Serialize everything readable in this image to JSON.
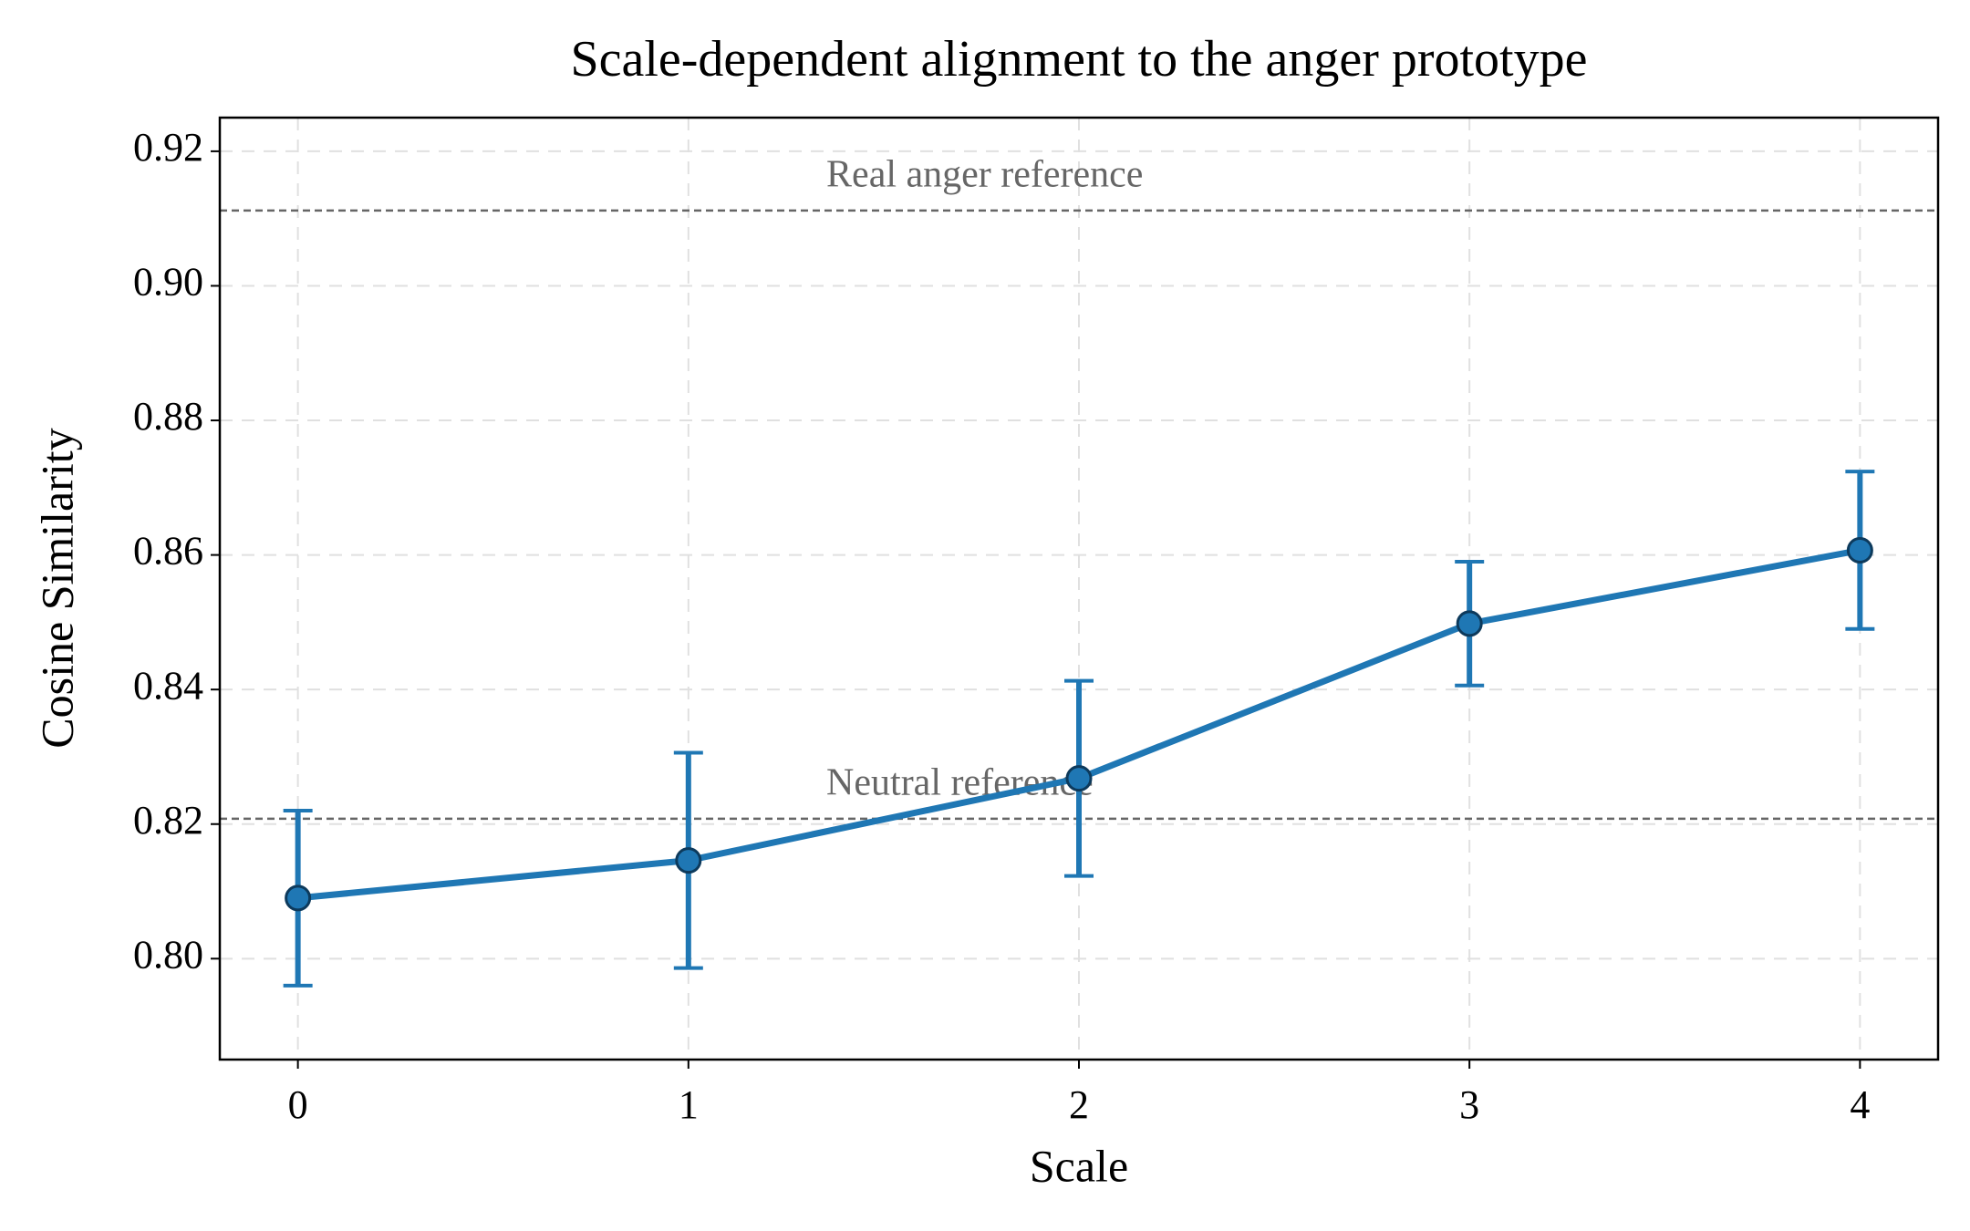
{
  "chart_data": {
    "type": "line",
    "title": "Scale-dependent alignment to the anger prototype",
    "x_label": "Scale",
    "y_label": "Cosine Similarity",
    "x": [
      0,
      1,
      2,
      3,
      4
    ],
    "series": [
      {
        "color": "#1f77b4",
        "values": [
          0.809,
          0.8146,
          0.8268,
          0.8498,
          0.8607
        ],
        "errors": [
          0.013,
          0.016,
          0.0145,
          0.0092,
          0.0117
        ]
      }
    ],
    "reference_lines": [
      {
        "label": "Real anger reference",
        "value": 0.9112,
        "color": "#666666"
      },
      {
        "label": "Neutral reference",
        "value": 0.8208,
        "color": "#666666"
      }
    ],
    "xlim": [
      -0.2,
      4.2
    ],
    "xticks": [
      0,
      1,
      2,
      3,
      4
    ],
    "ylim": [
      0.785,
      0.925
    ],
    "yticks": [
      {
        "value": 0.8,
        "label": "0.80"
      },
      0.82,
      0.84,
      0.86,
      0.88,
      {
        "value": 0.9,
        "label": "0.90"
      },
      0.92
    ],
    "grid": true
  }
}
